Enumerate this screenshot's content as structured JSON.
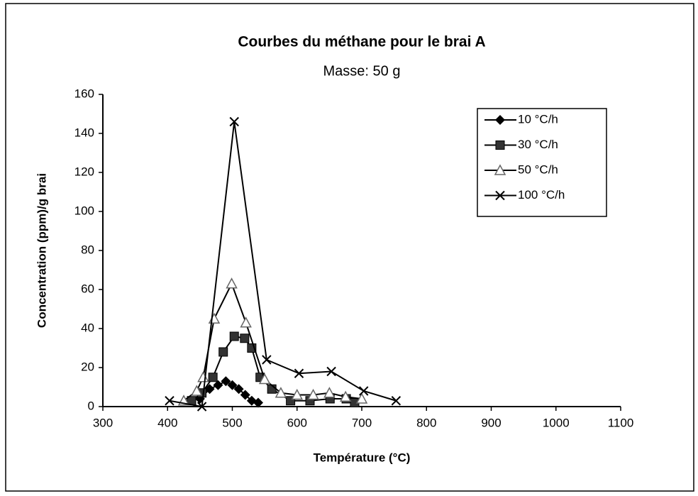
{
  "chart_data": {
    "type": "line",
    "title": "Courbes du méthane pour le brai A",
    "subtitle": "Masse:  50 g",
    "x_label": "Température (°C)",
    "y_label": "Concentration (ppm)/g brai",
    "xlim": [
      300,
      1100
    ],
    "xticks": [
      300,
      400,
      500,
      600,
      700,
      800,
      900,
      1000,
      1100
    ],
    "ylim": [
      0,
      160
    ],
    "yticks": [
      0,
      20,
      40,
      60,
      80,
      100,
      120,
      140,
      160
    ],
    "legend": "upper right",
    "series": [
      {
        "name": "10 °C/h",
        "color": "#000000",
        "marker": "diamond",
        "x": [
          450,
          465,
          478,
          490,
          500,
          510,
          520,
          530,
          540
        ],
        "values": [
          4,
          9,
          11,
          13,
          11,
          9,
          6,
          3,
          2
        ]
      },
      {
        "name": "30 °C/h",
        "color": "#000000",
        "marker": "square",
        "x": [
          437,
          453,
          470,
          486,
          503,
          519,
          530,
          543,
          561,
          590,
          620,
          651,
          676,
          689
        ],
        "values": [
          3,
          7,
          15,
          28,
          36,
          35,
          30,
          15,
          9,
          3,
          3,
          4,
          4,
          2
        ]
      },
      {
        "name": "50 °C/h",
        "color": "#000000",
        "marker": "triangle",
        "x": [
          425,
          445,
          455,
          472,
          499,
          521,
          550,
          575,
          600,
          625,
          650,
          675,
          700
        ],
        "values": [
          3,
          8,
          15,
          45,
          63,
          43,
          14,
          7,
          6,
          6,
          7,
          5,
          4
        ]
      },
      {
        "name": "100 °C/h",
        "color": "#000000",
        "marker": "x",
        "x": [
          403,
          453,
          503,
          553,
          603,
          653,
          703,
          753
        ],
        "values": [
          3,
          0,
          146,
          24,
          17,
          18,
          8,
          3
        ]
      }
    ]
  }
}
